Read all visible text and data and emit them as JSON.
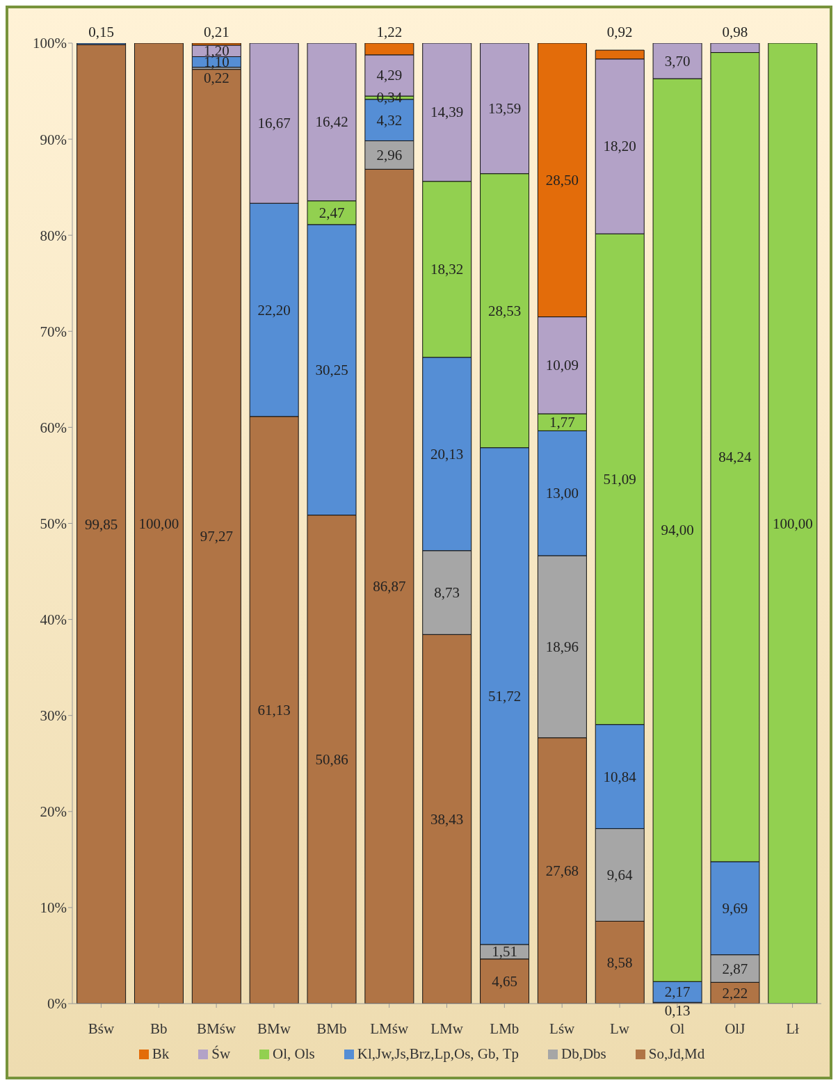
{
  "chart_data": {
    "type": "bar",
    "stacked": true,
    "data_labels": true,
    "grid": false,
    "legend": "bottom",
    "categories": [
      "Bśw",
      "Bb",
      "BMśw",
      "BMw",
      "BMb",
      "LMśw",
      "LMw",
      "LMb",
      "Lśw",
      "Lw",
      "Ol",
      "OlJ",
      "Lł"
    ],
    "ylim": [
      0,
      100
    ],
    "yticks": [
      {
        "value": 0,
        "label": "0%"
      },
      {
        "value": 10,
        "label": "10%"
      },
      {
        "value": 20,
        "label": "20%"
      },
      {
        "value": 30,
        "label": "30%"
      },
      {
        "value": 40,
        "label": "40%"
      },
      {
        "value": 50,
        "label": "50%"
      },
      {
        "value": 60,
        "label": "60%"
      },
      {
        "value": 70,
        "label": "70%"
      },
      {
        "value": 80,
        "label": "80%"
      },
      {
        "value": 90,
        "label": "90%"
      },
      {
        "value": 100,
        "label": "100%"
      }
    ],
    "series": [
      {
        "name": "So,Jd,Md",
        "color": "#b07445",
        "values": [
          99.85,
          100,
          97.27,
          61.13,
          50.86,
          86.87,
          38.43,
          4.65,
          27.68,
          8.58,
          0.13,
          2.22,
          null
        ],
        "value_labels": [
          "99,85",
          "100,00",
          "97,27",
          "61,13",
          "50,86",
          "86,87",
          "38,43",
          "4,65",
          "27,68",
          "8,58",
          "0,13",
          "2,22",
          null
        ]
      },
      {
        "name": "Db,Dbs",
        "color": "#a6a6a6",
        "values": [
          null,
          null,
          0.22,
          null,
          null,
          2.96,
          8.73,
          1.51,
          18.96,
          9.64,
          null,
          2.87,
          null
        ],
        "value_labels": [
          null,
          null,
          "0,22",
          null,
          null,
          "2,96",
          "8,73",
          "1,51",
          "18,96",
          "9,64",
          null,
          "2,87",
          null
        ]
      },
      {
        "name": "Kl,Jw,Js,Brz,Lp,Os, Gb, Tp",
        "color": "#558ed5",
        "values": [
          0.15,
          null,
          1.1,
          22.2,
          30.25,
          4.32,
          20.13,
          51.72,
          13.0,
          10.84,
          2.17,
          9.69,
          null
        ],
        "value_labels": [
          "0,15",
          null,
          "1,10",
          "22,20",
          "30,25",
          "4,32",
          "20,13",
          "51,72",
          "13,00",
          "10,84",
          "2,17",
          "9,69",
          null
        ]
      },
      {
        "name": "Ol, Ols",
        "color": "#92d050",
        "values": [
          null,
          null,
          null,
          null,
          2.47,
          0.34,
          18.32,
          28.53,
          1.77,
          51.09,
          94.0,
          84.24,
          100
        ],
        "value_labels": [
          null,
          null,
          null,
          null,
          "2,47",
          "0,34",
          "18,32",
          "28,53",
          "1,77",
          "51,09",
          "94,00",
          "84,24",
          "100,00"
        ]
      },
      {
        "name": "Św",
        "color": "#b3a2c7",
        "values": [
          null,
          null,
          1.2,
          16.67,
          16.42,
          4.29,
          14.39,
          13.59,
          10.09,
          18.2,
          3.7,
          0.98,
          null
        ],
        "value_labels": [
          null,
          null,
          "1,20",
          "16,67",
          "16,42",
          "4,29",
          "14,39",
          "13,59",
          "10,09",
          "18,20",
          "3,70",
          "0,98",
          null
        ]
      },
      {
        "name": "Bk",
        "color": "#e36c0a",
        "values": [
          null,
          null,
          0.21,
          null,
          null,
          1.22,
          null,
          null,
          28.5,
          0.92,
          null,
          null,
          null
        ],
        "value_labels": [
          null,
          null,
          "0,21",
          null,
          null,
          "1,22",
          null,
          null,
          "28,50",
          "0,92",
          null,
          null,
          null
        ]
      }
    ]
  }
}
